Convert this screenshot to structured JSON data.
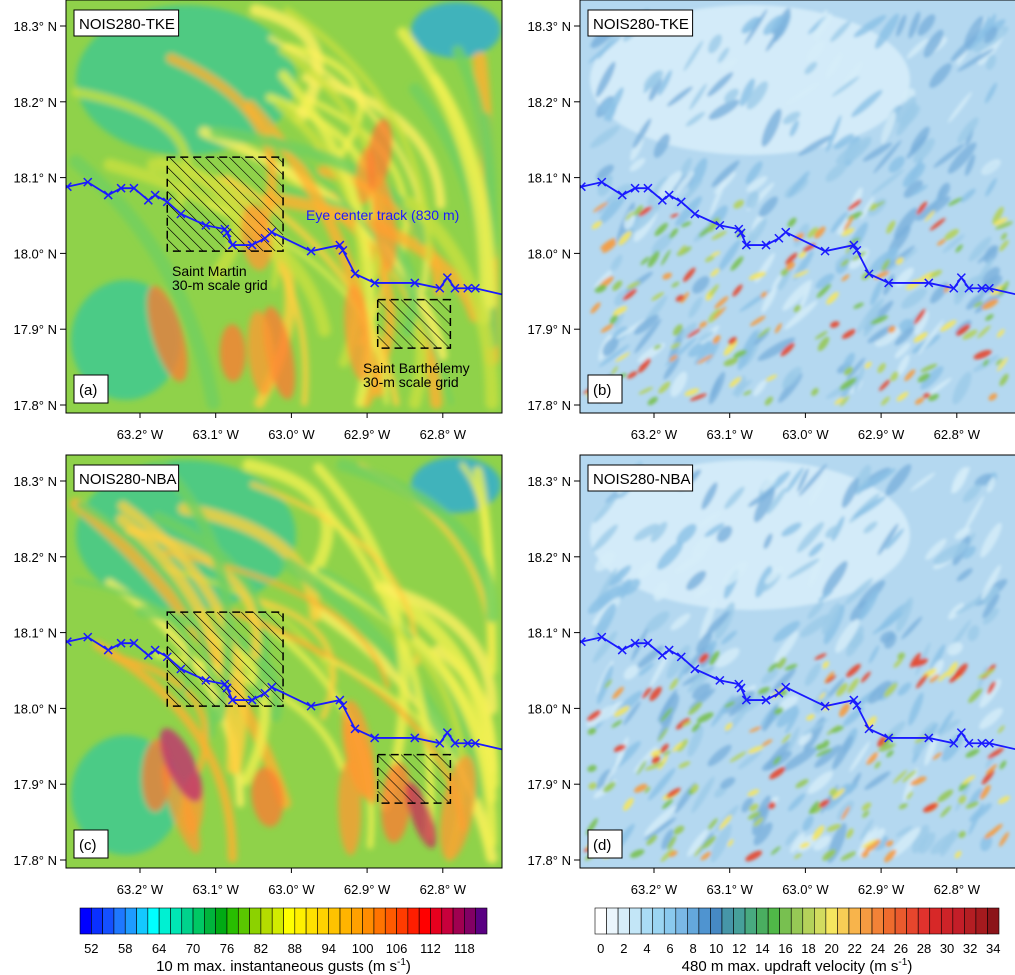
{
  "panels": [
    {
      "id": "a",
      "title": "NOIS280-TKE",
      "label": "(a)",
      "field": "gusts",
      "annotations": true
    },
    {
      "id": "b",
      "title": "NOIS280-TKE",
      "label": "(b)",
      "field": "updraft",
      "annotations": false
    },
    {
      "id": "c",
      "title": "NOIS280-NBA",
      "label": "(c)",
      "field": "gusts",
      "annotations": false
    },
    {
      "id": "d",
      "title": "NOIS280-NBA",
      "label": "(d)",
      "field": "updraft",
      "annotations": false
    }
  ],
  "axes": {
    "lat_ticks": [
      "18.3° N",
      "18.2° N",
      "18.1° N",
      "18.0° N",
      "17.9° N",
      "17.8° N"
    ],
    "lat_values": [
      18.3,
      18.2,
      18.1,
      18.0,
      17.9,
      17.8
    ],
    "lon_ticks": [
      "63.2° W",
      "63.1° W",
      "63.0° W",
      "62.9° W",
      "62.8° W"
    ],
    "lon_values": [
      63.2,
      63.1,
      63.0,
      62.9,
      62.8
    ]
  },
  "annotations": {
    "track_label": "Eye center track (830 m)",
    "saint_martin": [
      "Saint Martin",
      "30-m scale grid"
    ],
    "saint_barthelemy": [
      "Saint Barthélemy",
      "30-m scale grid"
    ],
    "saint_martin_box": {
      "lon_w": [
        63.164,
        63.011
      ],
      "lat_n": [
        18.003,
        18.127
      ]
    },
    "saint_barthelemy_box": {
      "lon_w": [
        62.886,
        62.79
      ],
      "lat_n": [
        17.875,
        17.939
      ]
    }
  },
  "track": {
    "color": "#1a1aff",
    "points_lon_w_lat_n": [
      [
        63.296,
        18.088
      ],
      [
        63.269,
        18.094
      ],
      [
        63.242,
        18.077
      ],
      [
        63.225,
        18.086
      ],
      [
        63.208,
        18.086
      ],
      [
        63.189,
        18.07
      ],
      [
        63.18,
        18.077
      ],
      [
        63.164,
        18.068
      ],
      [
        63.146,
        18.052
      ],
      [
        63.113,
        18.037
      ],
      [
        63.088,
        18.032
      ],
      [
        63.085,
        18.027
      ],
      [
        63.078,
        18.011
      ],
      [
        63.052,
        18.011
      ],
      [
        63.035,
        18.02
      ],
      [
        63.026,
        18.028
      ],
      [
        62.974,
        18.003
      ],
      [
        62.936,
        18.011
      ],
      [
        62.932,
        18.004
      ],
      [
        62.916,
        17.973
      ],
      [
        62.89,
        17.961
      ],
      [
        62.837,
        17.961
      ],
      [
        62.804,
        17.954
      ],
      [
        62.794,
        17.968
      ],
      [
        62.784,
        17.954
      ],
      [
        62.767,
        17.954
      ],
      [
        62.757,
        17.954
      ]
    ],
    "end_point": [
      62.722,
      17.946
    ]
  },
  "colorbars": [
    {
      "title": "10 m max. instantaneous gusts (m s",
      "title_sup": "-1",
      "title_end": ")",
      "labels": [
        "52",
        "58",
        "64",
        "70",
        "76",
        "82",
        "88",
        "94",
        "100",
        "106",
        "112",
        "118"
      ],
      "colors": [
        "#0000ff",
        "#0a30ff",
        "#1450ff",
        "#1e78ff",
        "#1e9bff",
        "#14c8ff",
        "#00ffff",
        "#00f0d2",
        "#00e6b4",
        "#00d28c",
        "#00c864",
        "#00b43c",
        "#00aa14",
        "#28be00",
        "#5ac800",
        "#8cd200",
        "#b4dc00",
        "#d2eb00",
        "#ffff00",
        "#fff000",
        "#ffe100",
        "#ffd200",
        "#ffc300",
        "#ffb400",
        "#ffa000",
        "#ff8c00",
        "#ff7300",
        "#ff5a00",
        "#ff3c00",
        "#ff1e00",
        "#ff0000",
        "#e6001e",
        "#c8003c",
        "#a00050",
        "#820064",
        "#5a0082"
      ]
    },
    {
      "title": "480 m max. updraft velocity (m s",
      "title_sup": "-1",
      "title_end": ")",
      "labels": [
        "0",
        "2",
        "4",
        "6",
        "8",
        "10",
        "12",
        "14",
        "16",
        "18",
        "20",
        "22",
        "24",
        "26",
        "28",
        "30",
        "32",
        "34"
      ],
      "colors": [
        "#ffffff",
        "#eaf5fc",
        "#d6edf9",
        "#c3e6f7",
        "#aadcf5",
        "#9bd5f2",
        "#8ac9ee",
        "#7ab8e6",
        "#64a8dc",
        "#4f94d0",
        "#4689c4",
        "#4696a8",
        "#46a09a",
        "#48aa80",
        "#4aae60",
        "#50b848",
        "#78c050",
        "#96c855",
        "#b4d25a",
        "#d2dc5f",
        "#f5e65f",
        "#f8cd55",
        "#f8b44b",
        "#f59b41",
        "#f28237",
        "#ee6b2d",
        "#ea5a2d",
        "#e6462d",
        "#e0322d",
        "#d72828",
        "#cd2328",
        "#c31e28",
        "#b41e23",
        "#a51a1e",
        "#8c1419"
      ]
    }
  ]
}
